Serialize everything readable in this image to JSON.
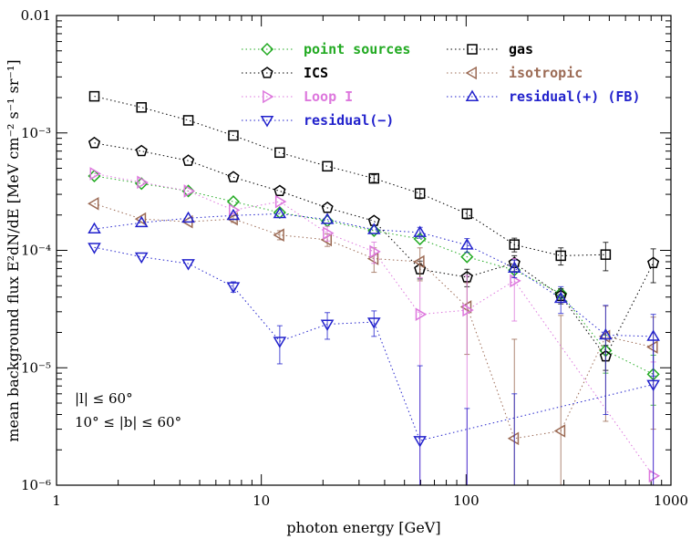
{
  "chart_data": {
    "type": "scatter",
    "xlabel": "photon energy [GeV]",
    "ylabel": "mean background flux E²dN/dE [MeV cm⁻² s⁻¹ sr⁻¹]",
    "xscale": "log",
    "yscale": "log",
    "xlim": [
      1,
      1000
    ],
    "ylim": [
      1e-06,
      0.01
    ],
    "x_tick_labels": [
      "1",
      "10",
      "100",
      "1000"
    ],
    "y_tick_labels": [
      "10⁻⁶",
      "10⁻⁵",
      "10⁻⁴",
      "10⁻³",
      "0.01"
    ],
    "legend_position": "top-center",
    "annotations": [
      "|l| ≤ 60°",
      "10° ≤ |b| ≤ 60°"
    ],
    "series": [
      {
        "name": "point sources",
        "color": "#22aa22",
        "marker": "diamond",
        "x": [
          1.53,
          2.6,
          4.4,
          7.3,
          12.3,
          21,
          35.5,
          59.5,
          101,
          172,
          290,
          480,
          820
        ],
        "y": [
          0.00043,
          0.00037,
          0.00032,
          0.00026,
          0.00021,
          0.000178,
          0.000147,
          0.000125,
          8.8e-05,
          6.8e-05,
          4.3e-05,
          1.4e-05,
          8.8e-06
        ],
        "err": [
          null,
          null,
          null,
          null,
          null,
          null,
          null,
          null,
          null,
          null,
          4e-06,
          5e-06,
          4e-06
        ]
      },
      {
        "name": "gas",
        "color": "#000000",
        "marker": "square",
        "x": [
          1.53,
          2.6,
          4.4,
          7.3,
          12.3,
          21,
          35.5,
          59.5,
          101,
          172,
          290,
          480,
          820
        ],
        "y": [
          0.00205,
          0.00165,
          0.00128,
          0.00095,
          0.00068,
          0.00052,
          0.00041,
          0.000305,
          0.000205,
          0.000112,
          9e-05,
          9.2e-05,
          null
        ],
        "err": [
          null,
          null,
          null,
          null,
          null,
          null,
          3e-05,
          3e-05,
          2e-05,
          1.5e-05,
          1.5e-05,
          2.5e-05,
          null
        ]
      },
      {
        "name": "ICS",
        "color": "#000000",
        "marker": "pentagon",
        "x": [
          1.53,
          2.6,
          4.4,
          7.3,
          12.3,
          21,
          35.5,
          59.5,
          101,
          172,
          290,
          480,
          820
        ],
        "y": [
          0.00082,
          0.0007,
          0.00058,
          0.00042,
          0.00032,
          0.00023,
          0.000178,
          6.9e-05,
          5.9e-05,
          7.8e-05,
          4.1e-05,
          1.25e-05,
          7.8e-05
        ],
        "err": [
          null,
          null,
          null,
          null,
          null,
          null,
          null,
          1.2e-05,
          1e-05,
          1.2e-05,
          6e-06,
          3e-06,
          2.5e-05
        ]
      },
      {
        "name": "isotropic",
        "color": "#9c6b55",
        "marker": "triangle-left",
        "x": [
          1.53,
          2.6,
          4.4,
          7.3,
          12.3,
          21,
          35.5,
          59.5,
          101,
          172,
          290,
          480,
          820
        ],
        "y": [
          0.00025,
          0.000185,
          0.000175,
          0.000185,
          0.000135,
          0.000123,
          8.5e-05,
          8e-05,
          3.3e-05,
          2.5e-06,
          2.9e-06,
          1.85e-05,
          1.5e-05
        ],
        "err": [
          null,
          null,
          null,
          1.2e-05,
          1.2e-05,
          1.5e-05,
          2e-05,
          2.5e-05,
          2e-05,
          1.5e-05,
          2.5e-05,
          1.5e-05,
          1.2e-05
        ]
      },
      {
        "name": "Loop I",
        "color": "#dd77dd",
        "marker": "triangle-right",
        "x": [
          1.53,
          2.6,
          4.4,
          7.3,
          12.3,
          21,
          35.5,
          59.5,
          101,
          172,
          290,
          480,
          820
        ],
        "y": [
          0.00045,
          0.00038,
          0.00032,
          0.00022,
          0.00026,
          0.00014,
          9.75e-05,
          2.85e-05,
          3.1e-05,
          5.5e-05,
          null,
          null,
          1.2e-06
        ],
        "err": [
          null,
          null,
          null,
          null,
          null,
          2e-05,
          2e-05,
          3e-05,
          3e-05,
          3e-05,
          null,
          null,
          1e-05
        ]
      },
      {
        "name": "residual(−)",
        "color": "#2222cc",
        "marker": "triangle-down",
        "x": [
          1.53,
          2.6,
          4.4,
          7.3,
          12.3,
          21,
          35.5,
          59.5,
          101,
          172,
          290,
          480,
          820
        ],
        "y": [
          0.000106,
          8.8e-05,
          7.7e-05,
          4.9e-05,
          1.68e-05,
          2.35e-05,
          2.45e-05,
          2.4e-06,
          null,
          null,
          null,
          null,
          7.2e-06
        ],
        "err": [
          null,
          null,
          null,
          5e-06,
          6e-06,
          6e-06,
          6e-06,
          8e-06,
          3.5e-06,
          5e-06,
          null,
          null,
          1e-05
        ]
      },
      {
        "name": "residual(+) (FB)",
        "color": "#2222cc",
        "marker": "triangle-up",
        "x": [
          1.53,
          2.6,
          4.4,
          7.3,
          12.3,
          21,
          35.5,
          59.5,
          101,
          172,
          290,
          480,
          820
        ],
        "y": [
          0.000152,
          0.000172,
          0.000188,
          0.000198,
          0.000205,
          0.000183,
          0.00015,
          0.000142,
          0.000111,
          7.05e-05,
          3.9e-05,
          1.9e-05,
          1.85e-05
        ],
        "err": [
          null,
          null,
          null,
          null,
          null,
          null,
          null,
          1.5e-05,
          1.5e-05,
          1.2e-05,
          1e-05,
          1.5e-05,
          1e-05
        ]
      }
    ]
  }
}
